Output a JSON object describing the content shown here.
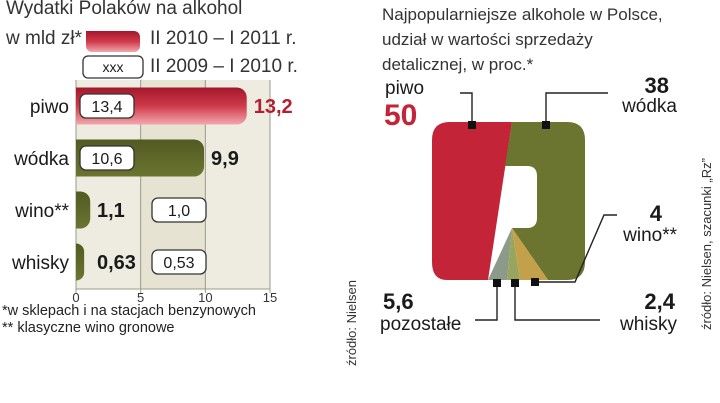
{
  "chart_data": [
    {
      "type": "bar",
      "title": "Wydatki Polaków na alkohol",
      "subtitle": "w mld zł*",
      "categories": [
        "piwo",
        "wódka",
        "wino**",
        "whisky"
      ],
      "series": [
        {
          "name": "II 2010 – I 2011 r.",
          "values": [
            13.2,
            9.9,
            1.1,
            0.63
          ]
        },
        {
          "name": "II 2009 – I 2010 r.",
          "values": [
            13.4,
            10.6,
            1.0,
            0.53
          ]
        }
      ],
      "value_labels_current": [
        "13,2",
        "9,9",
        "1,1",
        "0,63"
      ],
      "value_labels_previous": [
        "13,4",
        "10,6",
        "1,0",
        "0,53"
      ],
      "legend_box_label": "xxx",
      "ticks": [
        0,
        5,
        10,
        15
      ],
      "tick_labels": [
        "0",
        "5",
        "10",
        "15"
      ],
      "xlim": [
        0,
        15
      ],
      "grid": true,
      "footnotes": [
        "*w sklepach i na stacjach benzynowych",
        "** klasyczne wino gronowe"
      ],
      "source": "źródło: Nielsen",
      "colors": {
        "current_top": "#b51e30",
        "current_fill": "#cf3a4a",
        "other": "#6b7530",
        "other_dark": "#525a22",
        "panel": "#eeece0",
        "panel_mid": "#e6e3d2"
      }
    },
    {
      "type": "pie",
      "title": "Najpopularniejsze alkohole w Polsce, udział w wartości sprzedaży detalicznej, w proc.*",
      "slices": [
        {
          "name": "piwo",
          "value": 50,
          "label": "50",
          "color": "#c42437"
        },
        {
          "name": "wódka",
          "value": 38,
          "label": "38",
          "color": "#6b7530"
        },
        {
          "name": "wino**",
          "value": 4,
          "label": "4",
          "color": "#c3a04a"
        },
        {
          "name": "whisky",
          "value": 2.4,
          "label": "2,4",
          "color": "#98a55e"
        },
        {
          "name": "pozostałe",
          "value": 5.6,
          "label": "5,6",
          "color": "#8c9a8a"
        }
      ],
      "source": "źródło: Nielsen, szacunki „Rz”"
    }
  ]
}
